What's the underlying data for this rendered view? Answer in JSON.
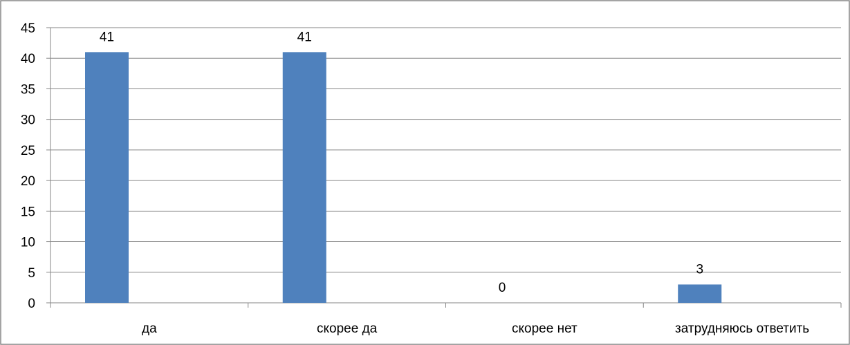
{
  "chart_data": {
    "type": "bar",
    "categories": [
      "да",
      "скорее да",
      "скорее нет",
      "затрудняюсь ответить"
    ],
    "values": [
      41,
      41,
      0,
      3
    ],
    "data_labels": [
      "41",
      "41",
      "0",
      "3"
    ],
    "title": "",
    "xlabel": "",
    "ylabel": "",
    "ylim": [
      0,
      45
    ],
    "y_ticks": [
      0,
      5,
      10,
      15,
      20,
      25,
      30,
      35,
      40,
      45
    ],
    "grid": true,
    "legend": "none",
    "bar_color": "#4f81bd",
    "grid_color": "#868686",
    "axis_color": "#868686",
    "frame_color": "#868686"
  }
}
